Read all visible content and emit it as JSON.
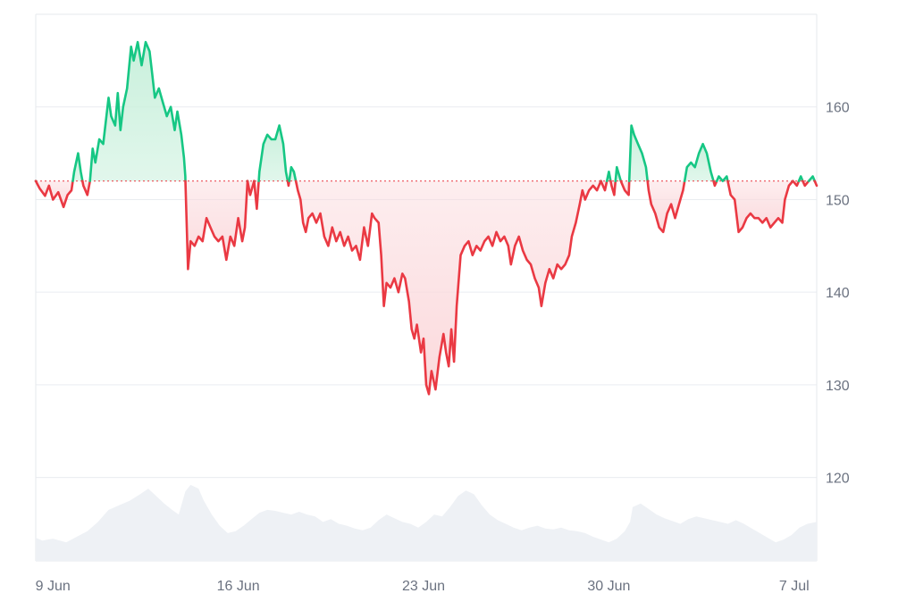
{
  "chart_data": {
    "type": "line",
    "title": "",
    "xlabel": "",
    "ylabel": "",
    "baseline": 152,
    "ylim": [
      111,
      170
    ],
    "y_ticks": [
      120,
      130,
      140,
      150,
      160
    ],
    "x_ticks": [
      {
        "label": "9 Jun",
        "day": 9
      },
      {
        "label": "16 Jun",
        "day": 16
      },
      {
        "label": "23 Jun",
        "day": 23
      },
      {
        "label": "30 Jun",
        "day": 30
      },
      {
        "label": "7 Jul",
        "day": 37
      }
    ],
    "xlim": [
      8.35,
      37.85
    ],
    "colors": {
      "above": "#16c784",
      "below": "#ea3943",
      "above_fill": "#c9f0dc",
      "below_fill": "#fbd9dc",
      "volume": "#eef1f5",
      "baseline": "#ea3943"
    },
    "price": [
      [
        8.35,
        152.0
      ],
      [
        8.5,
        151.2
      ],
      [
        8.7,
        150.4
      ],
      [
        8.85,
        151.5
      ],
      [
        9.0,
        150.0
      ],
      [
        9.2,
        150.8
      ],
      [
        9.4,
        149.2
      ],
      [
        9.55,
        150.5
      ],
      [
        9.7,
        151.0
      ],
      [
        9.8,
        153.0
      ],
      [
        9.95,
        155.0
      ],
      [
        10.05,
        153.0
      ],
      [
        10.15,
        151.5
      ],
      [
        10.3,
        150.5
      ],
      [
        10.4,
        152.0
      ],
      [
        10.5,
        155.5
      ],
      [
        10.6,
        154.0
      ],
      [
        10.75,
        156.5
      ],
      [
        10.9,
        156.0
      ],
      [
        11.0,
        158.5
      ],
      [
        11.1,
        161.0
      ],
      [
        11.2,
        159.0
      ],
      [
        11.35,
        158.0
      ],
      [
        11.45,
        161.5
      ],
      [
        11.55,
        157.5
      ],
      [
        11.65,
        160.0
      ],
      [
        11.8,
        162.0
      ],
      [
        11.95,
        166.5
      ],
      [
        12.05,
        165.0
      ],
      [
        12.2,
        167.0
      ],
      [
        12.35,
        164.5
      ],
      [
        12.5,
        167.0
      ],
      [
        12.65,
        166.0
      ],
      [
        12.75,
        163.5
      ],
      [
        12.85,
        161.0
      ],
      [
        13.0,
        162.0
      ],
      [
        13.15,
        160.5
      ],
      [
        13.3,
        159.0
      ],
      [
        13.45,
        160.0
      ],
      [
        13.6,
        157.5
      ],
      [
        13.7,
        159.5
      ],
      [
        13.85,
        157.0
      ],
      [
        13.95,
        154.5
      ],
      [
        14.0,
        152.5
      ],
      [
        14.1,
        142.5
      ],
      [
        14.2,
        145.5
      ],
      [
        14.35,
        145.0
      ],
      [
        14.5,
        146.0
      ],
      [
        14.65,
        145.5
      ],
      [
        14.8,
        148.0
      ],
      [
        14.95,
        147.0
      ],
      [
        15.1,
        146.0
      ],
      [
        15.25,
        145.5
      ],
      [
        15.4,
        146.0
      ],
      [
        15.55,
        143.5
      ],
      [
        15.7,
        146.0
      ],
      [
        15.85,
        145.0
      ],
      [
        16.0,
        148.0
      ],
      [
        16.15,
        145.5
      ],
      [
        16.25,
        147.0
      ],
      [
        16.35,
        152.0
      ],
      [
        16.45,
        150.5
      ],
      [
        16.6,
        152.0
      ],
      [
        16.7,
        149.0
      ],
      [
        16.8,
        153.0
      ],
      [
        16.95,
        156.0
      ],
      [
        17.1,
        157.0
      ],
      [
        17.25,
        156.5
      ],
      [
        17.4,
        156.5
      ],
      [
        17.55,
        158.0
      ],
      [
        17.7,
        156.0
      ],
      [
        17.8,
        153.0
      ],
      [
        17.9,
        151.5
      ],
      [
        18.0,
        153.5
      ],
      [
        18.1,
        153.0
      ],
      [
        18.25,
        151.0
      ],
      [
        18.35,
        150.0
      ],
      [
        18.45,
        147.5
      ],
      [
        18.55,
        146.5
      ],
      [
        18.65,
        148.0
      ],
      [
        18.8,
        148.5
      ],
      [
        18.95,
        147.5
      ],
      [
        19.1,
        148.5
      ],
      [
        19.25,
        146.0
      ],
      [
        19.4,
        145.0
      ],
      [
        19.55,
        147.0
      ],
      [
        19.7,
        145.5
      ],
      [
        19.85,
        146.5
      ],
      [
        20.0,
        145.0
      ],
      [
        20.15,
        146.0
      ],
      [
        20.3,
        144.5
      ],
      [
        20.45,
        145.0
      ],
      [
        20.6,
        143.5
      ],
      [
        20.75,
        147.0
      ],
      [
        20.9,
        145.0
      ],
      [
        21.05,
        148.5
      ],
      [
        21.15,
        148.0
      ],
      [
        21.3,
        147.5
      ],
      [
        21.4,
        144.0
      ],
      [
        21.5,
        138.5
      ],
      [
        21.6,
        141.0
      ],
      [
        21.75,
        140.5
      ],
      [
        21.9,
        141.5
      ],
      [
        22.05,
        140.0
      ],
      [
        22.2,
        142.0
      ],
      [
        22.3,
        141.5
      ],
      [
        22.45,
        139.0
      ],
      [
        22.55,
        136.0
      ],
      [
        22.65,
        135.0
      ],
      [
        22.75,
        136.5
      ],
      [
        22.9,
        133.5
      ],
      [
        23.0,
        135.0
      ],
      [
        23.1,
        130.0
      ],
      [
        23.2,
        129.0
      ],
      [
        23.3,
        131.5
      ],
      [
        23.45,
        129.5
      ],
      [
        23.6,
        133.0
      ],
      [
        23.75,
        135.5
      ],
      [
        23.85,
        133.5
      ],
      [
        23.95,
        132.0
      ],
      [
        24.05,
        136.0
      ],
      [
        24.15,
        132.5
      ],
      [
        24.25,
        138.5
      ],
      [
        24.4,
        144.0
      ],
      [
        24.55,
        145.0
      ],
      [
        24.7,
        145.5
      ],
      [
        24.85,
        144.0
      ],
      [
        25.0,
        145.0
      ],
      [
        25.15,
        144.5
      ],
      [
        25.3,
        145.5
      ],
      [
        25.45,
        146.0
      ],
      [
        25.6,
        145.0
      ],
      [
        25.75,
        146.5
      ],
      [
        25.9,
        145.5
      ],
      [
        26.05,
        146.0
      ],
      [
        26.2,
        145.0
      ],
      [
        26.3,
        143.0
      ],
      [
        26.45,
        145.0
      ],
      [
        26.6,
        146.0
      ],
      [
        26.75,
        144.5
      ],
      [
        26.9,
        143.5
      ],
      [
        27.05,
        143.0
      ],
      [
        27.2,
        141.5
      ],
      [
        27.35,
        140.5
      ],
      [
        27.45,
        138.5
      ],
      [
        27.6,
        141.0
      ],
      [
        27.75,
        142.5
      ],
      [
        27.9,
        141.5
      ],
      [
        28.05,
        143.0
      ],
      [
        28.2,
        142.5
      ],
      [
        28.35,
        143.0
      ],
      [
        28.5,
        144.0
      ],
      [
        28.6,
        146.0
      ],
      [
        28.75,
        147.5
      ],
      [
        28.9,
        149.5
      ],
      [
        29.0,
        151.0
      ],
      [
        29.1,
        150.0
      ],
      [
        29.25,
        151.0
      ],
      [
        29.4,
        151.5
      ],
      [
        29.55,
        151.0
      ],
      [
        29.7,
        152.0
      ],
      [
        29.85,
        151.0
      ],
      [
        30.0,
        153.0
      ],
      [
        30.1,
        151.5
      ],
      [
        30.2,
        150.5
      ],
      [
        30.3,
        153.5
      ],
      [
        30.45,
        152.0
      ],
      [
        30.6,
        151.0
      ],
      [
        30.75,
        150.5
      ],
      [
        30.85,
        158.0
      ],
      [
        30.95,
        157.0
      ],
      [
        31.1,
        156.0
      ],
      [
        31.25,
        155.0
      ],
      [
        31.4,
        153.5
      ],
      [
        31.5,
        151.0
      ],
      [
        31.6,
        149.5
      ],
      [
        31.75,
        148.5
      ],
      [
        31.9,
        147.0
      ],
      [
        32.05,
        146.5
      ],
      [
        32.2,
        148.5
      ],
      [
        32.35,
        149.5
      ],
      [
        32.5,
        148.0
      ],
      [
        32.65,
        149.5
      ],
      [
        32.8,
        151.0
      ],
      [
        32.95,
        153.5
      ],
      [
        33.1,
        154.0
      ],
      [
        33.25,
        153.5
      ],
      [
        33.4,
        155.0
      ],
      [
        33.55,
        156.0
      ],
      [
        33.7,
        155.0
      ],
      [
        33.85,
        153.0
      ],
      [
        34.0,
        151.5
      ],
      [
        34.15,
        152.5
      ],
      [
        34.3,
        152.0
      ],
      [
        34.45,
        152.5
      ],
      [
        34.6,
        150.5
      ],
      [
        34.75,
        150.0
      ],
      [
        34.9,
        146.5
      ],
      [
        35.05,
        147.0
      ],
      [
        35.2,
        148.0
      ],
      [
        35.35,
        148.5
      ],
      [
        35.5,
        148.0
      ],
      [
        35.65,
        148.0
      ],
      [
        35.8,
        147.5
      ],
      [
        35.95,
        148.0
      ],
      [
        36.1,
        147.0
      ],
      [
        36.25,
        147.5
      ],
      [
        36.4,
        148.0
      ],
      [
        36.55,
        147.5
      ],
      [
        36.65,
        150.0
      ],
      [
        36.8,
        151.5
      ],
      [
        36.95,
        152.0
      ],
      [
        37.1,
        151.5
      ],
      [
        37.25,
        152.5
      ],
      [
        37.4,
        151.5
      ],
      [
        37.55,
        152.0
      ],
      [
        37.7,
        152.5
      ],
      [
        37.85,
        151.5
      ]
    ],
    "volume": [
      [
        8.35,
        113.5
      ],
      [
        8.6,
        113.2
      ],
      [
        9.0,
        113.4
      ],
      [
        9.5,
        113.0
      ],
      [
        9.9,
        113.6
      ],
      [
        10.3,
        114.2
      ],
      [
        10.7,
        115.2
      ],
      [
        11.1,
        116.5
      ],
      [
        11.5,
        117.0
      ],
      [
        11.9,
        117.5
      ],
      [
        12.3,
        118.2
      ],
      [
        12.6,
        118.8
      ],
      [
        12.9,
        118.0
      ],
      [
        13.2,
        117.2
      ],
      [
        13.5,
        116.5
      ],
      [
        13.75,
        116.0
      ],
      [
        14.0,
        118.5
      ],
      [
        14.2,
        119.2
      ],
      [
        14.5,
        118.8
      ],
      [
        14.7,
        117.5
      ],
      [
        15.0,
        116.0
      ],
      [
        15.3,
        114.8
      ],
      [
        15.6,
        114.0
      ],
      [
        15.9,
        114.2
      ],
      [
        16.2,
        114.8
      ],
      [
        16.5,
        115.5
      ],
      [
        16.8,
        116.2
      ],
      [
        17.1,
        116.5
      ],
      [
        17.4,
        116.4
      ],
      [
        17.7,
        116.2
      ],
      [
        18.0,
        116.0
      ],
      [
        18.3,
        116.3
      ],
      [
        18.6,
        116.0
      ],
      [
        18.9,
        115.8
      ],
      [
        19.2,
        115.2
      ],
      [
        19.5,
        115.5
      ],
      [
        19.8,
        115.0
      ],
      [
        20.1,
        114.8
      ],
      [
        20.4,
        114.5
      ],
      [
        20.7,
        114.3
      ],
      [
        21.0,
        114.6
      ],
      [
        21.3,
        115.4
      ],
      [
        21.6,
        116.0
      ],
      [
        21.9,
        115.6
      ],
      [
        22.2,
        115.2
      ],
      [
        22.5,
        115.0
      ],
      [
        22.8,
        114.6
      ],
      [
        23.1,
        115.2
      ],
      [
        23.4,
        116.0
      ],
      [
        23.7,
        115.8
      ],
      [
        24.0,
        116.8
      ],
      [
        24.3,
        118.0
      ],
      [
        24.6,
        118.6
      ],
      [
        24.9,
        118.2
      ],
      [
        25.2,
        117.0
      ],
      [
        25.5,
        116.0
      ],
      [
        25.8,
        115.4
      ],
      [
        26.1,
        115.0
      ],
      [
        26.4,
        114.6
      ],
      [
        26.7,
        114.3
      ],
      [
        27.0,
        114.6
      ],
      [
        27.3,
        114.8
      ],
      [
        27.6,
        114.5
      ],
      [
        27.9,
        114.4
      ],
      [
        28.2,
        114.6
      ],
      [
        28.5,
        114.3
      ],
      [
        28.8,
        114.2
      ],
      [
        29.1,
        114.0
      ],
      [
        29.4,
        113.6
      ],
      [
        29.7,
        113.3
      ],
      [
        30.0,
        113.0
      ],
      [
        30.3,
        113.4
      ],
      [
        30.6,
        114.2
      ],
      [
        30.8,
        115.2
      ],
      [
        30.9,
        116.8
      ],
      [
        31.2,
        117.2
      ],
      [
        31.5,
        116.6
      ],
      [
        31.8,
        116.0
      ],
      [
        32.1,
        115.6
      ],
      [
        32.4,
        115.3
      ],
      [
        32.7,
        115.0
      ],
      [
        33.0,
        115.5
      ],
      [
        33.3,
        115.8
      ],
      [
        33.6,
        115.6
      ],
      [
        33.9,
        115.4
      ],
      [
        34.2,
        115.2
      ],
      [
        34.5,
        115.0
      ],
      [
        34.8,
        115.4
      ],
      [
        35.1,
        115.0
      ],
      [
        35.4,
        114.5
      ],
      [
        35.7,
        114.0
      ],
      [
        36.0,
        113.5
      ],
      [
        36.3,
        113.0
      ],
      [
        36.6,
        113.3
      ],
      [
        36.9,
        113.8
      ],
      [
        37.2,
        114.6
      ],
      [
        37.5,
        115.0
      ],
      [
        37.85,
        115.2
      ]
    ]
  }
}
